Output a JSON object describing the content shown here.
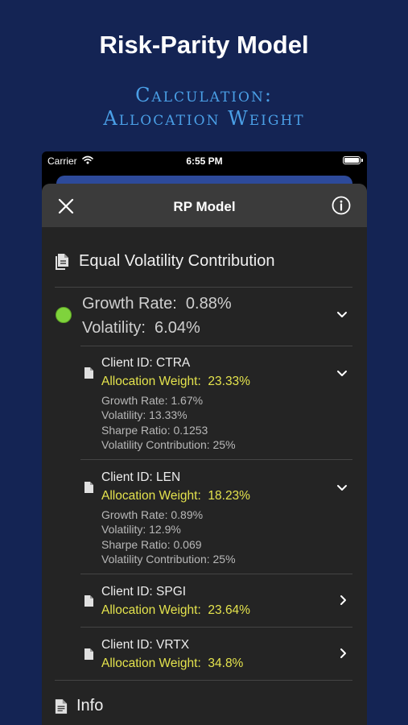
{
  "hero": {
    "title": "Risk-Parity Model",
    "subtitle_line1": "Calculation:",
    "subtitle_line2": "Allocation Weight"
  },
  "status_bar": {
    "carrier": "Carrier",
    "time": "6:55 PM"
  },
  "nav": {
    "title": "RP Model",
    "close_icon": "close-icon",
    "info_icon": "info-icon"
  },
  "section": {
    "title": "Equal Volatility Contribution",
    "icon": "document-icon"
  },
  "portfolio": {
    "growth_rate": "Growth Rate:  0.88%",
    "volatility": "Volatility:  6.04%",
    "status_color": "#7fd33c"
  },
  "clients": [
    {
      "id_label": "Client ID: CTRA",
      "allocation": "Allocation Weight:  23.33%",
      "details": [
        "Growth Rate: 1.67%",
        "Volatility: 13.33%",
        "Sharpe Ratio: 0.1253",
        "Volatility Contribution: 25%"
      ],
      "expanded": true
    },
    {
      "id_label": "Client ID: LEN",
      "allocation": "Allocation Weight:  18.23%",
      "details": [
        "Growth Rate: 0.89%",
        "Volatility: 12.9%",
        "Sharpe Ratio: 0.069",
        "Volatility Contribution: 25%"
      ],
      "expanded": true
    },
    {
      "id_label": "Client ID: SPGI",
      "allocation": "Allocation Weight:  23.64%",
      "details": [],
      "expanded": false
    },
    {
      "id_label": "Client ID: VRTX",
      "allocation": "Allocation Weight:  34.8%",
      "details": [],
      "expanded": false
    }
  ],
  "info_section": {
    "title": "Info"
  },
  "colors": {
    "background": "#142454",
    "subtitle": "#4a9fe6",
    "allocation": "#e4e34d",
    "sheet": "#242424",
    "nav": "#3b3b3b"
  }
}
